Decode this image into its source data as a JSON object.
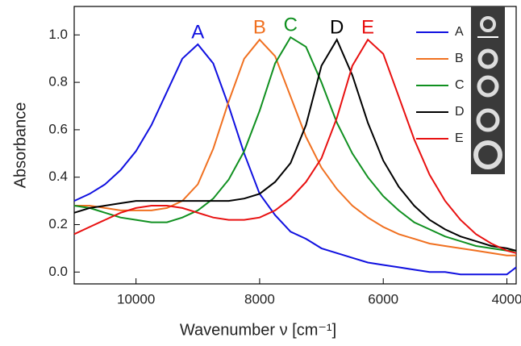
{
  "chart_data": {
    "type": "line",
    "xlabel": "Wavenumber ν [cm⁻¹]",
    "ylabel": "Absorbance",
    "x": [
      11000,
      10750,
      10500,
      10250,
      10000,
      9750,
      9500,
      9250,
      9000,
      8750,
      8500,
      8250,
      8000,
      7750,
      7500,
      7250,
      7000,
      6750,
      6500,
      6250,
      6000,
      5750,
      5500,
      5250,
      5000,
      4750,
      4500,
      4250,
      4000,
      3850
    ],
    "series": [
      {
        "name": "A",
        "color": "#1010e0",
        "values": [
          0.3,
          0.33,
          0.37,
          0.43,
          0.51,
          0.62,
          0.76,
          0.9,
          0.96,
          0.88,
          0.7,
          0.5,
          0.33,
          0.24,
          0.17,
          0.14,
          0.1,
          0.08,
          0.06,
          0.04,
          0.03,
          0.02,
          0.01,
          0.0,
          0.0,
          -0.01,
          -0.01,
          -0.01,
          -0.01,
          0.02
        ]
      },
      {
        "name": "B",
        "color": "#f07020",
        "values": [
          0.28,
          0.28,
          0.27,
          0.26,
          0.26,
          0.26,
          0.27,
          0.3,
          0.37,
          0.52,
          0.72,
          0.9,
          0.98,
          0.91,
          0.74,
          0.57,
          0.44,
          0.35,
          0.28,
          0.23,
          0.19,
          0.16,
          0.14,
          0.12,
          0.11,
          0.1,
          0.09,
          0.08,
          0.07,
          0.07
        ]
      },
      {
        "name": "C",
        "color": "#109020",
        "values": [
          0.28,
          0.27,
          0.25,
          0.23,
          0.22,
          0.21,
          0.21,
          0.23,
          0.26,
          0.31,
          0.39,
          0.51,
          0.68,
          0.88,
          0.99,
          0.95,
          0.8,
          0.63,
          0.5,
          0.4,
          0.32,
          0.26,
          0.21,
          0.18,
          0.15,
          0.13,
          0.11,
          0.1,
          0.09,
          0.09
        ]
      },
      {
        "name": "D",
        "color": "#000000",
        "values": [
          0.25,
          0.27,
          0.28,
          0.29,
          0.3,
          0.3,
          0.3,
          0.3,
          0.3,
          0.3,
          0.3,
          0.31,
          0.33,
          0.38,
          0.46,
          0.62,
          0.87,
          0.98,
          0.83,
          0.63,
          0.47,
          0.36,
          0.28,
          0.22,
          0.18,
          0.15,
          0.13,
          0.11,
          0.1,
          0.09
        ]
      },
      {
        "name": "E",
        "color": "#e81010",
        "values": [
          0.16,
          0.19,
          0.22,
          0.25,
          0.27,
          0.28,
          0.28,
          0.27,
          0.25,
          0.23,
          0.22,
          0.22,
          0.23,
          0.26,
          0.31,
          0.38,
          0.48,
          0.65,
          0.87,
          0.98,
          0.92,
          0.74,
          0.56,
          0.41,
          0.3,
          0.22,
          0.16,
          0.12,
          0.09,
          0.08
        ]
      }
    ],
    "peak_labels": [
      "A",
      "B",
      "C",
      "D",
      "E"
    ],
    "xlim": [
      11000,
      3850
    ],
    "ylim": [
      -0.05,
      1.12
    ],
    "xticks": [
      10000,
      8000,
      6000,
      4000
    ],
    "yticks": [
      {
        "value": 0,
        "label": "0.0"
      },
      0.2,
      0.4,
      0.6,
      0.8,
      {
        "value": 1,
        "label": "1.0"
      }
    ],
    "grid": false,
    "legend": "upper right"
  }
}
